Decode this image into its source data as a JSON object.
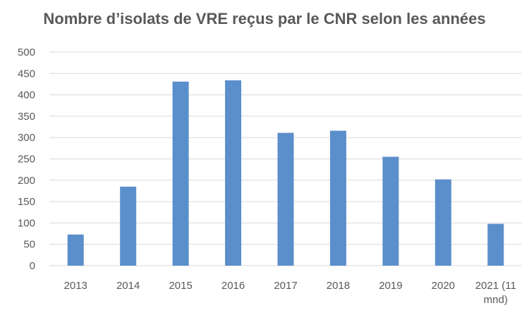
{
  "chart_data": {
    "type": "bar",
    "title": "Nombre d’isolats de VRE reçus par le CNR selon les années",
    "categories": [
      "2013",
      "2014",
      "2015",
      "2016",
      "2017",
      "2018",
      "2019",
      "2020",
      "2021 (11 mnd)"
    ],
    "category_lines": [
      [
        "2013"
      ],
      [
        "2014"
      ],
      [
        "2015"
      ],
      [
        "2016"
      ],
      [
        "2017"
      ],
      [
        "2018"
      ],
      [
        "2019"
      ],
      [
        "2020"
      ],
      [
        "2021 (11",
        "mnd)"
      ]
    ],
    "values": [
      73,
      185,
      431,
      434,
      311,
      316,
      255,
      202,
      98
    ],
    "ylim": [
      0,
      500
    ],
    "yticks": [
      0,
      50,
      100,
      150,
      200,
      250,
      300,
      350,
      400,
      450,
      500
    ],
    "grid": true,
    "legend": "none",
    "bar_color": "#5B8FCB",
    "grid_color": "#D9D9D9",
    "text_color": "#595959"
  }
}
